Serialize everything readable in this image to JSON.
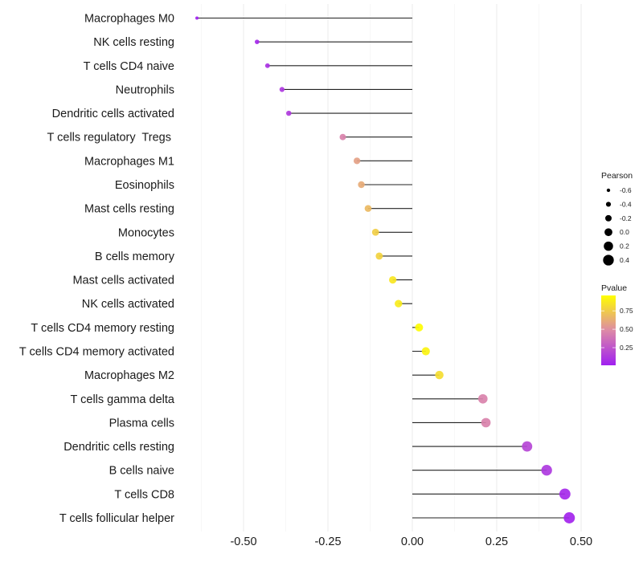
{
  "chart_data": {
    "type": "lollipop",
    "title": "",
    "xlabel": "",
    "ylabel": "",
    "xlim": [
      -0.665,
      0.525
    ],
    "x_ticks": [
      -0.5,
      -0.25,
      0.0,
      0.25,
      0.5
    ],
    "x_tick_labels": [
      "-0.50",
      "-0.25",
      "0.00",
      "0.25",
      "0.50"
    ],
    "grid": true,
    "categories": [
      "Macrophages M0",
      "NK cells resting",
      "T cells CD4 naive",
      "Neutrophils",
      "Dendritic cells activated",
      "T cells regulatory  Tregs ",
      "Macrophages M1",
      "Eosinophils",
      "Mast cells resting",
      "Monocytes",
      "B cells memory",
      "Mast cells activated",
      "NK cells activated",
      "T cells CD4 memory resting",
      "T cells CD4 memory activated",
      "Macrophages M2",
      "T cells gamma delta",
      "Plasma cells",
      "Dendritic cells resting",
      "B cells naive",
      "T cells CD8",
      "T cells follicular helper"
    ],
    "pearson": [
      -0.638,
      -0.46,
      -0.429,
      -0.386,
      -0.366,
      -0.206,
      -0.164,
      -0.151,
      -0.131,
      -0.109,
      -0.098,
      -0.058,
      -0.041,
      0.02,
      0.04,
      0.08,
      0.209,
      0.218,
      0.34,
      0.398,
      0.452,
      0.465
    ],
    "pvalue": [
      0.0,
      0.05,
      0.09,
      0.12,
      0.13,
      0.45,
      0.58,
      0.62,
      0.68,
      0.76,
      0.78,
      0.86,
      0.88,
      0.95,
      0.91,
      0.82,
      0.45,
      0.45,
      0.18,
      0.12,
      0.05,
      0.03
    ],
    "legends": {
      "size": {
        "title": "Pearson",
        "values": [
          -0.6,
          -0.4,
          -0.2,
          0.0,
          0.2,
          0.4
        ],
        "labels": [
          "-0.6",
          "-0.4",
          "-0.2",
          "0.0",
          "0.2",
          "0.4"
        ]
      },
      "color": {
        "title": "Pvalue",
        "range": [
          0.01,
          0.96
        ],
        "ticks": [
          0.75,
          0.5,
          0.25
        ],
        "tick_labels": [
          "0.75",
          "0.50",
          "0.25"
        ],
        "low_color": "#a020f0",
        "mid_color": "#dd8aa6",
        "high_color": "#ffff00"
      },
      "placement": "right"
    }
  }
}
